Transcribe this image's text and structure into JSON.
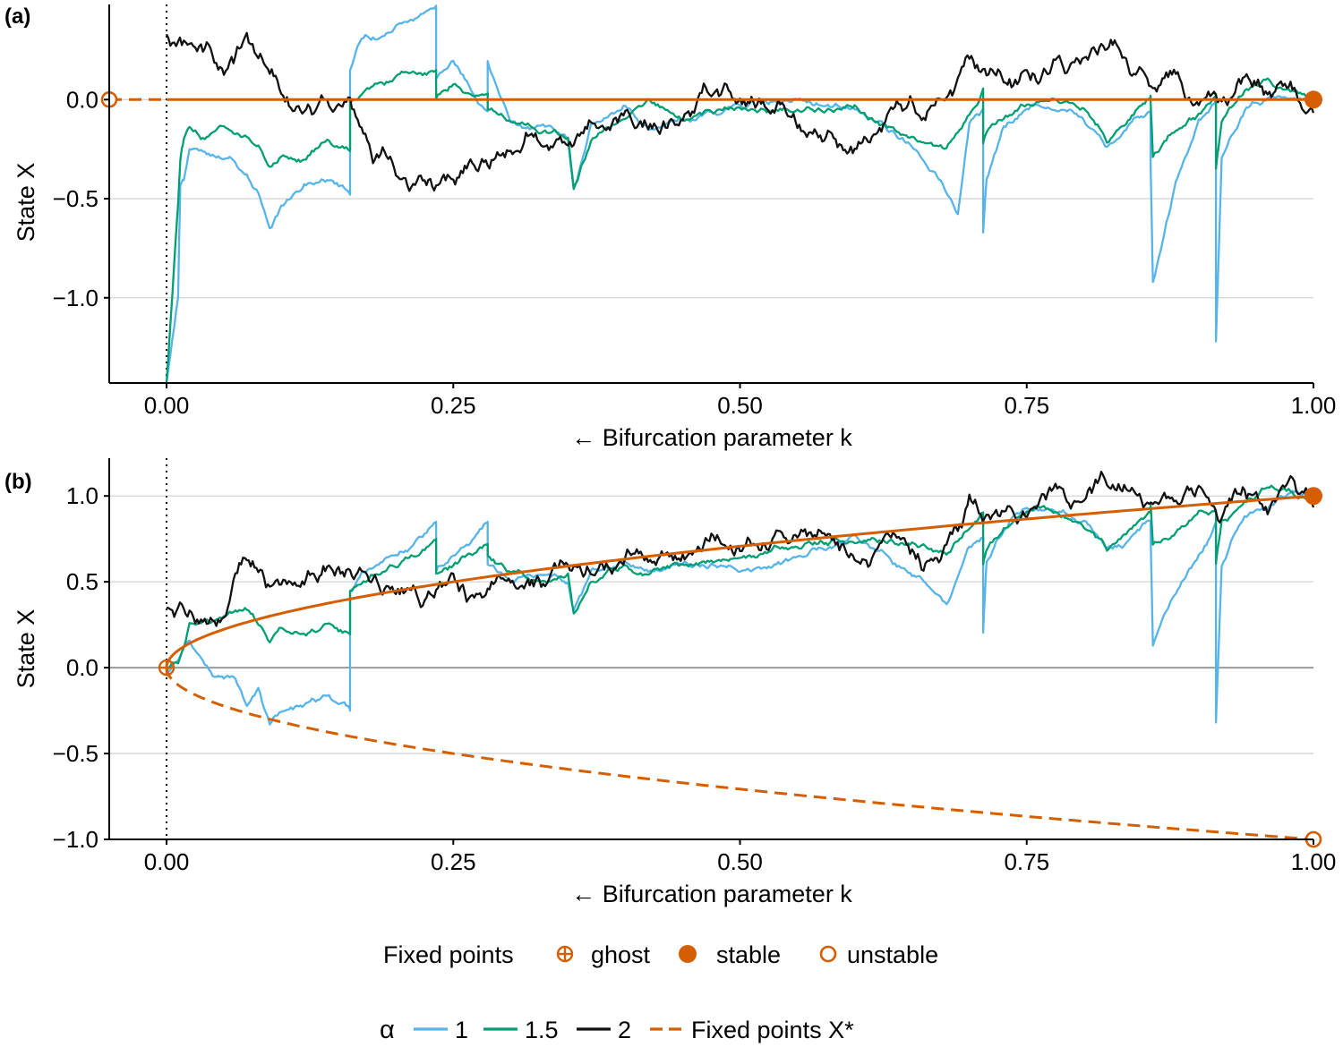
{
  "colors": {
    "alpha_1": "#56B4E9",
    "alpha_1_5": "#009E73",
    "alpha_2": "#111111",
    "fixed_points": "#D55E00",
    "grid": "#d4d4d4",
    "zero_line": "#9a9a9a"
  },
  "chart_data": [
    {
      "panel": "(a)",
      "type": "line",
      "xlabel": "← Bifurcation parameter k",
      "ylabel": "State X",
      "xlim": [
        -0.05,
        1.0
      ],
      "ylim": [
        -1.43,
        0.48
      ],
      "xticks": [
        0.0,
        0.25,
        0.5,
        0.75,
        1.0
      ],
      "xtick_labels": [
        "0.00",
        "0.25",
        "0.50",
        "0.75",
        "1.00"
      ],
      "yticks": [
        0.0,
        -0.5,
        -1.0
      ],
      "ytick_labels": [
        "0.0",
        "−0.5",
        "−1.0"
      ],
      "grid": "horizontal",
      "vline_x": 0.0,
      "fixed_point_curves": [
        {
          "style": "solid",
          "x": [
            0.0,
            1.0
          ],
          "y": [
            0.0,
            0.0
          ]
        },
        {
          "style": "dashed",
          "x": [
            -0.05,
            0.0
          ],
          "y": [
            0.0,
            0.0
          ]
        }
      ],
      "fixed_point_markers": [
        {
          "kind": "unstable",
          "x": -0.05,
          "y": 0.0
        },
        {
          "kind": "stable",
          "x": 1.0,
          "y": 0.0
        }
      ],
      "series": [
        {
          "name": "α = 1",
          "color_key": "alpha_1",
          "x": [
            1.0,
            0.98,
            0.96,
            0.94,
            0.92,
            0.915,
            0.915,
            0.9,
            0.88,
            0.86,
            0.858,
            0.858,
            0.845,
            0.82,
            0.8,
            0.78,
            0.76,
            0.75,
            0.73,
            0.715,
            0.712,
            0.712,
            0.7,
            0.69,
            0.68,
            0.66,
            0.64,
            0.6,
            0.55,
            0.5,
            0.45,
            0.42,
            0.4,
            0.37,
            0.355,
            0.35,
            0.33,
            0.3,
            0.28,
            0.28,
            0.25,
            0.235,
            0.235,
            0.2,
            0.17,
            0.16,
            0.16,
            0.14,
            0.12,
            0.1,
            0.09,
            0.08,
            0.07,
            0.06,
            0.04,
            0.02,
            0.015,
            0.012,
            0.01,
            0.0
          ],
          "y": [
            0.0,
            0.02,
            0.02,
            -0.05,
            -0.3,
            -1.22,
            0.0,
            -0.1,
            -0.4,
            -0.92,
            -0.32,
            -0.05,
            -0.1,
            -0.25,
            -0.08,
            -0.05,
            -0.03,
            -0.05,
            -0.15,
            -0.4,
            -0.67,
            -0.05,
            -0.1,
            -0.55,
            -0.45,
            -0.3,
            -0.2,
            -0.05,
            -0.02,
            -0.03,
            -0.1,
            -0.15,
            -0.05,
            -0.15,
            -0.45,
            -0.2,
            -0.15,
            -0.1,
            0.2,
            -0.05,
            0.18,
            0.1,
            0.47,
            0.35,
            0.3,
            0.15,
            -0.48,
            -0.4,
            -0.45,
            -0.55,
            -0.65,
            -0.5,
            -0.4,
            -0.33,
            -0.3,
            -0.25,
            -0.4,
            -0.42,
            -1.0,
            -1.43
          ]
        },
        {
          "name": "α = 1.5",
          "color_key": "alpha_1_5",
          "x": [
            1.0,
            0.98,
            0.96,
            0.94,
            0.92,
            0.915,
            0.915,
            0.9,
            0.88,
            0.86,
            0.858,
            0.858,
            0.84,
            0.82,
            0.8,
            0.78,
            0.76,
            0.74,
            0.715,
            0.712,
            0.712,
            0.7,
            0.68,
            0.66,
            0.64,
            0.6,
            0.55,
            0.5,
            0.45,
            0.42,
            0.4,
            0.37,
            0.355,
            0.35,
            0.33,
            0.3,
            0.28,
            0.28,
            0.25,
            0.235,
            0.235,
            0.2,
            0.17,
            0.16,
            0.16,
            0.14,
            0.12,
            0.1,
            0.09,
            0.08,
            0.07,
            0.05,
            0.03,
            0.02,
            0.015,
            0.012,
            0.01,
            0.0
          ],
          "y": [
            0.0,
            0.05,
            0.1,
            0.05,
            -0.1,
            -0.35,
            0.03,
            -0.05,
            -0.15,
            -0.3,
            0.0,
            0.02,
            -0.1,
            -0.2,
            -0.05,
            -0.03,
            0.0,
            -0.05,
            -0.15,
            -0.22,
            0.05,
            -0.1,
            -0.25,
            -0.18,
            -0.15,
            -0.05,
            -0.05,
            -0.05,
            -0.08,
            0.0,
            -0.1,
            -0.2,
            -0.45,
            -0.18,
            -0.15,
            -0.1,
            -0.05,
            0.02,
            0.08,
            0.0,
            0.15,
            0.1,
            0.05,
            0.0,
            -0.25,
            -0.2,
            -0.3,
            -0.3,
            -0.35,
            -0.25,
            -0.2,
            -0.15,
            -0.2,
            -0.15,
            -0.2,
            -0.3,
            -0.55,
            -1.43
          ]
        },
        {
          "name": "α = 2",
          "color_key": "alpha_2",
          "x": [
            1.0,
            0.98,
            0.96,
            0.94,
            0.92,
            0.9,
            0.88,
            0.86,
            0.84,
            0.82,
            0.8,
            0.78,
            0.76,
            0.74,
            0.72,
            0.7,
            0.68,
            0.66,
            0.64,
            0.62,
            0.6,
            0.58,
            0.55,
            0.52,
            0.5,
            0.47,
            0.45,
            0.42,
            0.4,
            0.37,
            0.35,
            0.32,
            0.3,
            0.28,
            0.25,
            0.22,
            0.2,
            0.18,
            0.16,
            0.14,
            0.12,
            0.1,
            0.08,
            0.07,
            0.06,
            0.05,
            0.04,
            0.02,
            0.0
          ],
          "y": [
            -0.05,
            0.12,
            0.05,
            0.1,
            0.0,
            0.02,
            0.1,
            0.08,
            0.2,
            0.25,
            0.15,
            0.2,
            0.15,
            0.1,
            0.12,
            0.2,
            0.05,
            -0.1,
            -0.05,
            -0.15,
            -0.25,
            -0.2,
            -0.1,
            -0.05,
            0.0,
            0.05,
            -0.1,
            -0.15,
            -0.1,
            -0.2,
            -0.25,
            -0.2,
            -0.3,
            -0.35,
            -0.4,
            -0.38,
            -0.35,
            -0.28,
            0.0,
            0.05,
            0.0,
            0.05,
            0.15,
            0.35,
            0.25,
            0.2,
            0.25,
            0.3,
            0.33
          ]
        }
      ]
    },
    {
      "panel": "(b)",
      "type": "line",
      "xlabel": "← Bifurcation parameter k",
      "ylabel": "State X",
      "xlim": [
        -0.05,
        1.0
      ],
      "ylim": [
        -1.0,
        1.22
      ],
      "xticks": [
        0.0,
        0.25,
        0.5,
        0.75,
        1.0
      ],
      "xtick_labels": [
        "0.00",
        "0.25",
        "0.50",
        "0.75",
        "1.00"
      ],
      "yticks": [
        1.0,
        0.5,
        0.0,
        -0.5,
        -1.0
      ],
      "ytick_labels": [
        "1.0",
        "0.5",
        "0.0",
        "−0.5",
        "−1.0"
      ],
      "grid": "horizontal",
      "vline_x": 0.0,
      "fixed_point_curves": [
        {
          "style": "solid",
          "formula": "X* = +sqrt(k)",
          "k_range": [
            0.0,
            1.0
          ]
        },
        {
          "style": "dashed",
          "formula": "X* = -sqrt(k)",
          "k_range": [
            0.0,
            1.0
          ]
        }
      ],
      "fixed_point_markers": [
        {
          "kind": "ghost",
          "x": 0.0,
          "y": 0.0
        },
        {
          "kind": "stable",
          "x": 1.0,
          "y": 1.0
        },
        {
          "kind": "unstable",
          "x": 1.0,
          "y": -1.0
        }
      ],
      "series": [
        {
          "name": "α = 1",
          "color_key": "alpha_1",
          "x": [
            1.0,
            0.98,
            0.96,
            0.94,
            0.92,
            0.915,
            0.915,
            0.9,
            0.88,
            0.86,
            0.858,
            0.858,
            0.84,
            0.82,
            0.8,
            0.78,
            0.76,
            0.74,
            0.715,
            0.712,
            0.712,
            0.7,
            0.68,
            0.66,
            0.64,
            0.6,
            0.55,
            0.5,
            0.45,
            0.42,
            0.4,
            0.37,
            0.355,
            0.35,
            0.33,
            0.3,
            0.28,
            0.28,
            0.25,
            0.235,
            0.235,
            0.2,
            0.17,
            0.16,
            0.16,
            0.14,
            0.12,
            0.1,
            0.09,
            0.08,
            0.07,
            0.06,
            0.04,
            0.03,
            0.02,
            0.01,
            0.0
          ],
          "y": [
            1.0,
            1.02,
            0.95,
            0.9,
            0.6,
            -0.32,
            0.85,
            0.65,
            0.45,
            0.15,
            0.8,
            0.85,
            0.75,
            0.7,
            0.85,
            0.9,
            0.95,
            0.9,
            0.6,
            0.2,
            0.75,
            0.7,
            0.4,
            0.55,
            0.6,
            0.75,
            0.65,
            0.55,
            0.6,
            0.55,
            0.6,
            0.55,
            0.35,
            0.52,
            0.55,
            0.5,
            0.6,
            0.85,
            0.65,
            0.55,
            0.85,
            0.65,
            0.55,
            0.45,
            -0.25,
            -0.15,
            -0.2,
            -0.25,
            -0.32,
            -0.1,
            -0.2,
            -0.05,
            -0.05,
            0.05,
            0.18,
            0.05,
            -0.05
          ]
        },
        {
          "name": "α = 1.5",
          "color_key": "alpha_1_5",
          "x": [
            1.0,
            0.98,
            0.96,
            0.94,
            0.92,
            0.915,
            0.915,
            0.9,
            0.88,
            0.86,
            0.858,
            0.858,
            0.84,
            0.82,
            0.8,
            0.78,
            0.76,
            0.74,
            0.715,
            0.712,
            0.712,
            0.7,
            0.68,
            0.66,
            0.64,
            0.6,
            0.55,
            0.5,
            0.45,
            0.42,
            0.4,
            0.37,
            0.355,
            0.35,
            0.33,
            0.3,
            0.28,
            0.28,
            0.25,
            0.235,
            0.235,
            0.2,
            0.17,
            0.16,
            0.16,
            0.14,
            0.12,
            0.1,
            0.09,
            0.08,
            0.07,
            0.05,
            0.03,
            0.02,
            0.01,
            0.0
          ],
          "y": [
            1.0,
            1.02,
            1.05,
            0.95,
            0.85,
            0.6,
            0.92,
            0.9,
            0.8,
            0.7,
            0.95,
            0.9,
            0.8,
            0.7,
            0.85,
            0.88,
            0.95,
            0.85,
            0.7,
            0.6,
            0.9,
            0.8,
            0.65,
            0.7,
            0.72,
            0.75,
            0.7,
            0.65,
            0.6,
            0.55,
            0.6,
            0.5,
            0.3,
            0.52,
            0.5,
            0.55,
            0.65,
            0.72,
            0.6,
            0.55,
            0.75,
            0.6,
            0.5,
            0.45,
            0.2,
            0.25,
            0.2,
            0.2,
            0.15,
            0.25,
            0.35,
            0.3,
            0.28,
            0.25,
            0.0,
            -0.02
          ]
        },
        {
          "name": "α = 2",
          "color_key": "alpha_2",
          "x": [
            1.0,
            0.98,
            0.96,
            0.94,
            0.92,
            0.9,
            0.88,
            0.86,
            0.84,
            0.82,
            0.8,
            0.78,
            0.76,
            0.74,
            0.72,
            0.7,
            0.68,
            0.66,
            0.64,
            0.62,
            0.6,
            0.58,
            0.55,
            0.52,
            0.5,
            0.47,
            0.45,
            0.42,
            0.4,
            0.37,
            0.35,
            0.32,
            0.3,
            0.28,
            0.25,
            0.22,
            0.2,
            0.18,
            0.16,
            0.14,
            0.12,
            0.1,
            0.08,
            0.07,
            0.06,
            0.05,
            0.04,
            0.02,
            0.0
          ],
          "y": [
            0.95,
            1.12,
            1.0,
            1.05,
            0.95,
            0.95,
            1.0,
            0.95,
            1.0,
            1.05,
            1.0,
            1.02,
            1.0,
            0.92,
            0.9,
            0.95,
            0.72,
            0.6,
            0.75,
            0.72,
            0.6,
            0.72,
            0.8,
            0.72,
            0.7,
            0.7,
            0.65,
            0.62,
            0.6,
            0.52,
            0.55,
            0.5,
            0.5,
            0.45,
            0.52,
            0.4,
            0.42,
            0.45,
            0.6,
            0.55,
            0.48,
            0.5,
            0.6,
            0.62,
            0.5,
            0.3,
            0.28,
            0.3,
            0.35
          ]
        }
      ]
    }
  ],
  "legend": {
    "fixed_points_title": "Fixed points",
    "ghost_label": "ghost",
    "stable_label": "stable",
    "unstable_label": "unstable",
    "alpha_title": "α",
    "alpha_1_label": "1",
    "alpha_1_5_label": "1.5",
    "alpha_2_label": "2",
    "fixed_points_line_label": "Fixed points X*"
  }
}
